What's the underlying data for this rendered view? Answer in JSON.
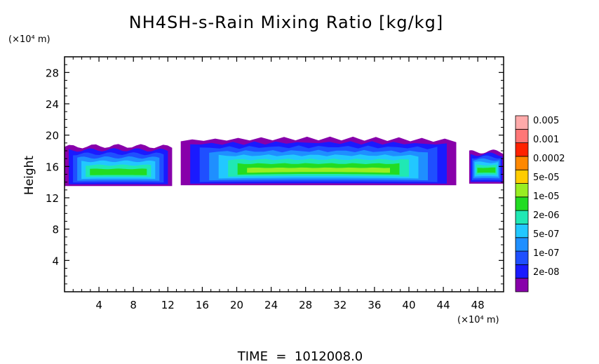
{
  "chart_data": {
    "type": "heatmap",
    "title": "NH4SH-s-Rain Mixing Ratio [kg/kg]",
    "ylabel": "Height",
    "x_unit": "(×10⁴ m)",
    "y_unit": "(×10⁴ m)",
    "xlim": [
      0,
      51
    ],
    "ylim": [
      0,
      30
    ],
    "x_ticks": [
      4,
      8,
      12,
      16,
      20,
      24,
      28,
      32,
      36,
      40,
      44,
      48
    ],
    "y_ticks": [
      4,
      8,
      12,
      16,
      20,
      24,
      28
    ],
    "footer": "TIME  =  1012008.0",
    "legend": {
      "colors": [
        "#8800aa",
        "#1a1aff",
        "#1f4fff",
        "#1f8fff",
        "#22c8ff",
        "#20e8b4",
        "#22dc22",
        "#99ee22",
        "#ffcc00",
        "#ff8800",
        "#ff2200",
        "#ff7777",
        "#ffaaaa"
      ],
      "labels": [
        "2e-08",
        "1e-07",
        "5e-07",
        "2e-06",
        "1e-05",
        "5e-05",
        "0.0002",
        "0.001",
        "0.005"
      ]
    },
    "layer_bands": [
      {
        "name": "left",
        "x_range": [
          0,
          12.5
        ],
        "bottom": 13.5,
        "top": 18.5,
        "core": 15.2,
        "core_level": "5e-05"
      },
      {
        "name": "main",
        "x_range": [
          13.5,
          45.5
        ],
        "bottom": 13.6,
        "top": 19.3,
        "core": 15.3,
        "core_level": "0.0002"
      },
      {
        "name": "right",
        "x_range": [
          47,
          51
        ],
        "bottom": 13.8,
        "top": 17.8,
        "core": 15.5,
        "core_level": "5e-05"
      }
    ]
  }
}
